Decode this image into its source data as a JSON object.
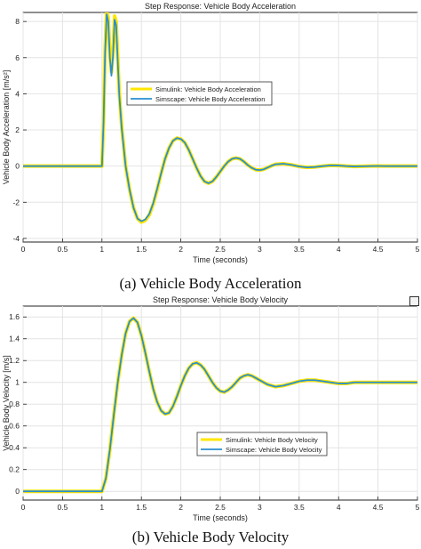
{
  "captions": {
    "a": "(a) Vehicle Body Acceleration",
    "b": "(b) Vehicle Body Velocity"
  },
  "chart_data": [
    {
      "type": "line",
      "title": "Step Response: Vehicle Body Acceleration",
      "xlabel": "Time (seconds)",
      "ylabel": "Vehicle Body Acceleration [m/s²]",
      "xlim": [
        0,
        5
      ],
      "ylim": [
        -4.2,
        8.5
      ],
      "xticks": [
        0,
        0.5,
        1,
        1.5,
        2,
        2.5,
        3,
        3.5,
        4,
        4.5,
        5
      ],
      "yticks": [
        -4,
        -2,
        0,
        2,
        4,
        6,
        8
      ],
      "grid": true,
      "legend_position": "center-left",
      "series": [
        {
          "name": "Simulink: Vehicle Body Acceleration",
          "color": "#ffe600",
          "x": [
            0,
            1.0,
            1.02,
            1.04,
            1.06,
            1.08,
            1.1,
            1.12,
            1.14,
            1.16,
            1.18,
            1.2,
            1.22,
            1.25,
            1.3,
            1.35,
            1.4,
            1.45,
            1.5,
            1.55,
            1.6,
            1.65,
            1.7,
            1.75,
            1.8,
            1.85,
            1.9,
            1.95,
            2.0,
            2.05,
            2.1,
            2.15,
            2.2,
            2.25,
            2.3,
            2.35,
            2.4,
            2.45,
            2.5,
            2.55,
            2.6,
            2.65,
            2.7,
            2.75,
            2.8,
            2.85,
            2.9,
            2.95,
            3.0,
            3.05,
            3.1,
            3.15,
            3.2,
            3.3,
            3.4,
            3.5,
            3.6,
            3.7,
            3.8,
            3.9,
            4.0,
            4.1,
            4.2,
            4.3,
            4.4,
            4.5,
            4.6,
            4.7,
            4.8,
            4.9,
            5.0
          ],
          "y": [
            0,
            0,
            2.5,
            6.5,
            8.6,
            8.2,
            6.2,
            5.2,
            6.3,
            8.3,
            8.0,
            6.0,
            4.0,
            2.2,
            0.0,
            -1.3,
            -2.3,
            -2.9,
            -3.1,
            -3.0,
            -2.7,
            -2.1,
            -1.3,
            -0.4,
            0.4,
            1.0,
            1.4,
            1.55,
            1.5,
            1.3,
            0.9,
            0.4,
            -0.1,
            -0.55,
            -0.85,
            -0.95,
            -0.85,
            -0.6,
            -0.3,
            0.0,
            0.25,
            0.4,
            0.45,
            0.4,
            0.25,
            0.05,
            -0.1,
            -0.2,
            -0.22,
            -0.18,
            -0.08,
            0.02,
            0.1,
            0.13,
            0.07,
            -0.02,
            -0.07,
            -0.05,
            0.0,
            0.04,
            0.03,
            0.0,
            -0.02,
            -0.01,
            0.0,
            0.01,
            0.0,
            0.0,
            0.0,
            0.0,
            0.0
          ]
        },
        {
          "name": "Simscape: Vehicle Body Acceleration",
          "color": "#2a8fd0",
          "x": [
            0,
            1.0,
            1.02,
            1.04,
            1.06,
            1.08,
            1.1,
            1.12,
            1.14,
            1.16,
            1.18,
            1.2,
            1.22,
            1.25,
            1.3,
            1.35,
            1.4,
            1.45,
            1.5,
            1.55,
            1.6,
            1.65,
            1.7,
            1.75,
            1.8,
            1.85,
            1.9,
            1.95,
            2.0,
            2.05,
            2.1,
            2.15,
            2.2,
            2.25,
            2.3,
            2.35,
            2.4,
            2.45,
            2.5,
            2.55,
            2.6,
            2.65,
            2.7,
            2.75,
            2.8,
            2.85,
            2.9,
            2.95,
            3.0,
            3.05,
            3.1,
            3.15,
            3.2,
            3.3,
            3.4,
            3.5,
            3.6,
            3.7,
            3.8,
            3.9,
            4.0,
            4.1,
            4.2,
            4.3,
            4.4,
            4.5,
            4.6,
            4.7,
            4.8,
            4.9,
            5.0
          ],
          "y": [
            0,
            0,
            2.4,
            6.3,
            8.4,
            8.0,
            6.0,
            5.0,
            6.1,
            8.1,
            7.8,
            5.8,
            3.9,
            2.1,
            0.0,
            -1.3,
            -2.3,
            -2.9,
            -3.05,
            -2.95,
            -2.65,
            -2.05,
            -1.25,
            -0.4,
            0.4,
            1.0,
            1.4,
            1.55,
            1.5,
            1.3,
            0.9,
            0.4,
            -0.1,
            -0.55,
            -0.85,
            -0.95,
            -0.85,
            -0.6,
            -0.3,
            0.0,
            0.25,
            0.4,
            0.45,
            0.4,
            0.25,
            0.05,
            -0.1,
            -0.2,
            -0.22,
            -0.18,
            -0.08,
            0.02,
            0.1,
            0.13,
            0.07,
            -0.02,
            -0.07,
            -0.05,
            0.0,
            0.04,
            0.03,
            0.0,
            -0.02,
            -0.01,
            0.0,
            0.01,
            0.0,
            0.0,
            0.0,
            0.0,
            0.0
          ]
        }
      ]
    },
    {
      "type": "line",
      "title": "Step Response: Vehicle Body Velocity",
      "xlabel": "Time (seconds)",
      "ylabel": "Vehicle Body Velocity [m/s]",
      "xlim": [
        0,
        5
      ],
      "ylim": [
        -0.08,
        1.7
      ],
      "xticks": [
        0,
        0.5,
        1,
        1.5,
        2,
        2.5,
        3,
        3.5,
        4,
        4.5,
        5
      ],
      "yticks": [
        0,
        0.2,
        0.4,
        0.6,
        0.8,
        1,
        1.2,
        1.4,
        1.6
      ],
      "grid": true,
      "legend_position": "center-right",
      "series": [
        {
          "name": "Simulink: Vehicle Body Velocity",
          "color": "#ffe600",
          "x": [
            0,
            1.0,
            1.05,
            1.1,
            1.15,
            1.2,
            1.25,
            1.3,
            1.35,
            1.4,
            1.45,
            1.5,
            1.55,
            1.6,
            1.65,
            1.7,
            1.75,
            1.8,
            1.85,
            1.9,
            1.95,
            2.0,
            2.05,
            2.1,
            2.15,
            2.2,
            2.25,
            2.3,
            2.35,
            2.4,
            2.45,
            2.5,
            2.55,
            2.6,
            2.65,
            2.7,
            2.75,
            2.8,
            2.85,
            2.9,
            2.95,
            3.0,
            3.1,
            3.2,
            3.3,
            3.4,
            3.5,
            3.6,
            3.7,
            3.8,
            3.9,
            4.0,
            4.1,
            4.2,
            4.3,
            4.4,
            4.5,
            4.6,
            4.7,
            4.8,
            4.9,
            5.0
          ],
          "y": [
            0,
            0,
            0.12,
            0.38,
            0.7,
            1.0,
            1.25,
            1.45,
            1.56,
            1.59,
            1.55,
            1.43,
            1.27,
            1.1,
            0.94,
            0.82,
            0.74,
            0.71,
            0.72,
            0.78,
            0.87,
            0.97,
            1.06,
            1.13,
            1.17,
            1.18,
            1.16,
            1.12,
            1.06,
            1.0,
            0.95,
            0.92,
            0.91,
            0.93,
            0.96,
            1.0,
            1.04,
            1.06,
            1.07,
            1.06,
            1.04,
            1.02,
            0.98,
            0.96,
            0.97,
            0.99,
            1.01,
            1.02,
            1.02,
            1.01,
            1.0,
            0.99,
            0.99,
            1.0,
            1.0,
            1.0,
            1.0,
            1.0,
            1.0,
            1.0,
            1.0,
            1.0
          ]
        },
        {
          "name": "Simscape: Vehicle Body Velocity",
          "color": "#2a8fd0",
          "x": [
            0,
            1.0,
            1.05,
            1.1,
            1.15,
            1.2,
            1.25,
            1.3,
            1.35,
            1.4,
            1.45,
            1.5,
            1.55,
            1.6,
            1.65,
            1.7,
            1.75,
            1.8,
            1.85,
            1.9,
            1.95,
            2.0,
            2.05,
            2.1,
            2.15,
            2.2,
            2.25,
            2.3,
            2.35,
            2.4,
            2.45,
            2.5,
            2.55,
            2.6,
            2.65,
            2.7,
            2.75,
            2.8,
            2.85,
            2.9,
            2.95,
            3.0,
            3.1,
            3.2,
            3.3,
            3.4,
            3.5,
            3.6,
            3.7,
            3.8,
            3.9,
            4.0,
            4.1,
            4.2,
            4.3,
            4.4,
            4.5,
            4.6,
            4.7,
            4.8,
            4.9,
            5.0
          ],
          "y": [
            0,
            0,
            0.12,
            0.38,
            0.7,
            1.0,
            1.25,
            1.45,
            1.56,
            1.59,
            1.55,
            1.43,
            1.27,
            1.1,
            0.94,
            0.82,
            0.74,
            0.71,
            0.72,
            0.78,
            0.87,
            0.97,
            1.06,
            1.13,
            1.17,
            1.18,
            1.16,
            1.12,
            1.06,
            1.0,
            0.95,
            0.92,
            0.91,
            0.93,
            0.96,
            1.0,
            1.04,
            1.06,
            1.07,
            1.06,
            1.04,
            1.02,
            0.98,
            0.96,
            0.97,
            0.99,
            1.01,
            1.02,
            1.02,
            1.01,
            1.0,
            0.99,
            0.99,
            1.0,
            1.0,
            1.0,
            1.0,
            1.0,
            1.0,
            1.0,
            1.0,
            1.0
          ]
        }
      ]
    }
  ]
}
